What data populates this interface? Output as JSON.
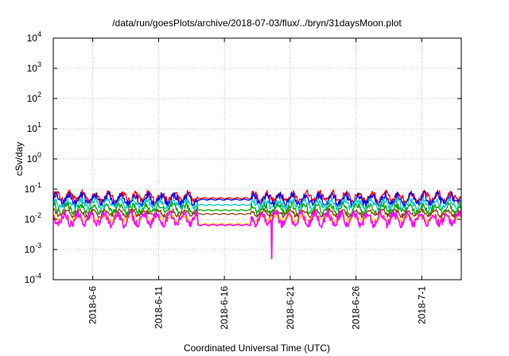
{
  "chart_data": {
    "type": "line",
    "title": "/data/run/goesPlots/archive/2018-07-03/flux/../bryn/31daysMoon.plot",
    "xlabel": "Coordinated Universal Time (UTC)",
    "ylabel": "cSv/day",
    "yscale": "log",
    "ylim": [
      0.0001,
      10000
    ],
    "xlim": [
      "2018-06-03",
      "2018-07-04"
    ],
    "grid": true,
    "x_ticks": [
      "2018-6-6",
      "2018-6-11",
      "2018-6-16",
      "2018-6-21",
      "2018-6-26",
      "2018-7-1"
    ],
    "y_ticks": [
      {
        "value": 0.0001,
        "base": "10",
        "exp": "-4"
      },
      {
        "value": 0.001,
        "base": "10",
        "exp": "-3"
      },
      {
        "value": 0.01,
        "base": "10",
        "exp": "-2"
      },
      {
        "value": 0.1,
        "base": "10",
        "exp": "-1"
      },
      {
        "value": 1,
        "base": "10",
        "exp": "0"
      },
      {
        "value": 10,
        "base": "10",
        "exp": "1"
      },
      {
        "value": 100,
        "base": "10",
        "exp": "2"
      },
      {
        "value": 1000,
        "base": "10",
        "exp": "3"
      },
      {
        "value": 10000,
        "base": "10",
        "exp": "4"
      }
    ],
    "gap": [
      "2018-06-14",
      "2018-06-18"
    ],
    "series": [
      {
        "color": "#ff0000",
        "level": 0.055,
        "gap_level": 0.05,
        "amp": 0.22
      },
      {
        "color": "#0000ff",
        "level": 0.045,
        "gap_level": 0.045,
        "amp": 0.25
      },
      {
        "color": "#00cccc",
        "level": 0.032,
        "gap_level": 0.03,
        "amp": 0.2
      },
      {
        "color": "#00aa00",
        "level": 0.022,
        "gap_level": 0.02,
        "amp": 0.2
      },
      {
        "color": "#8b4513",
        "level": 0.016,
        "gap_level": 0.015,
        "amp": 0.15
      },
      {
        "color": "#ffd700",
        "level": 0.011,
        "gap_level": 0.007,
        "amp": 0.15
      },
      {
        "color": "#ff00ff",
        "level": 0.012,
        "gap_level": 0.0065,
        "amp": 0.3,
        "dip": {
          "date": "2018-06-19.6",
          "value": 0.0005
        }
      }
    ]
  }
}
